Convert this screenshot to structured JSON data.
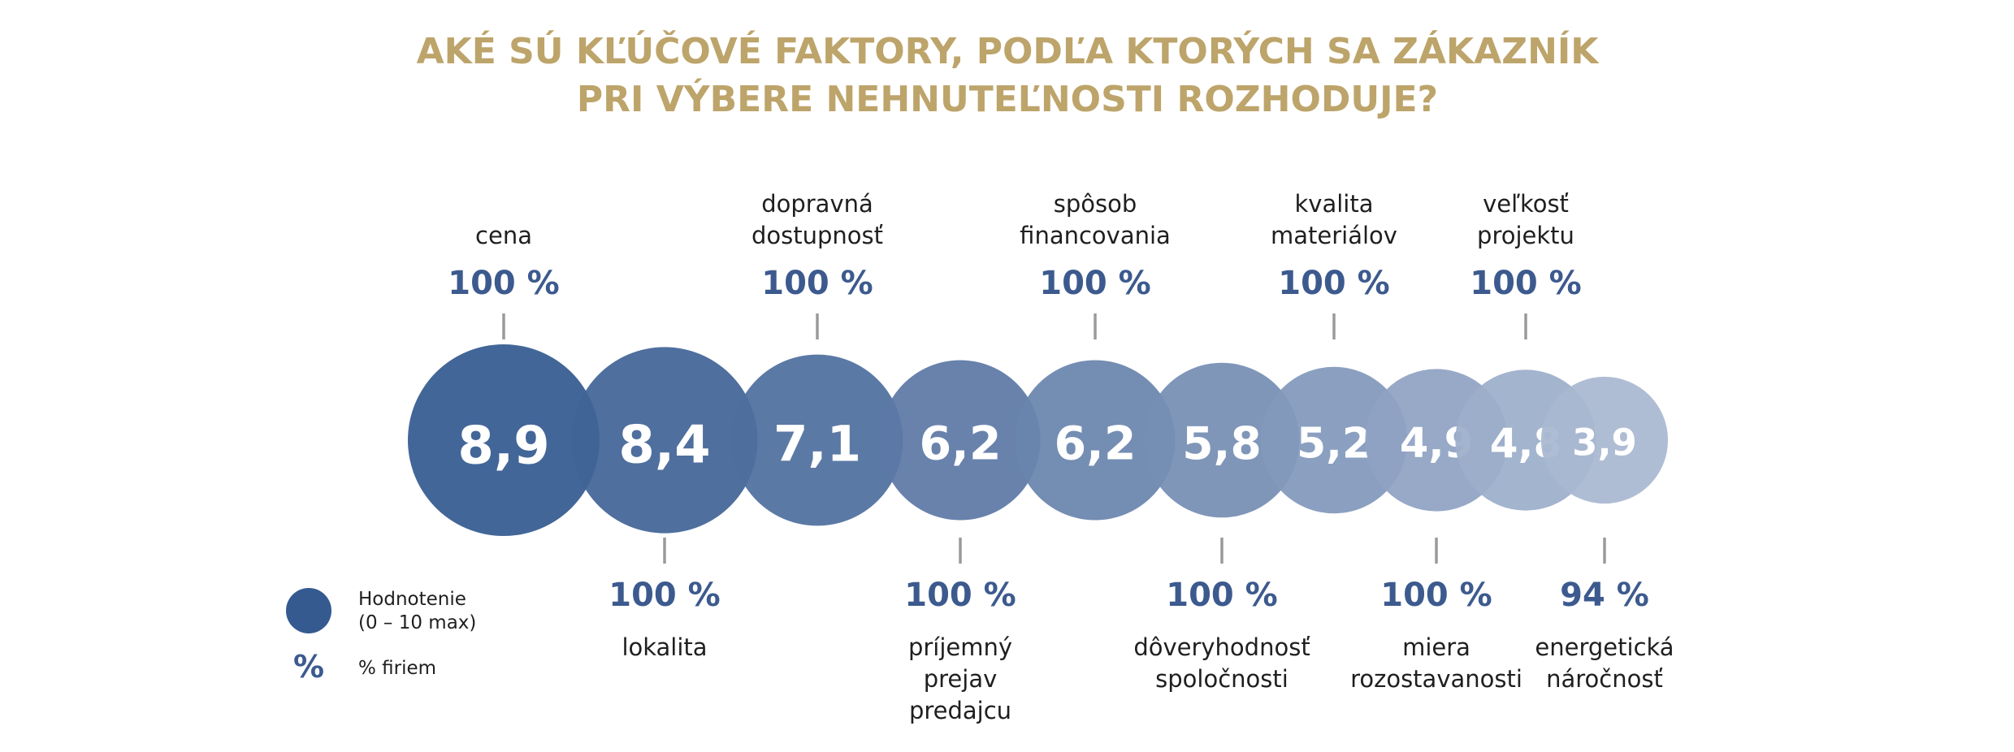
{
  "title": {
    "line1": "AKÉ SÚ KĽÚČOVÉ FAKTORY, PODĽA KTORÝCH SA ZÁKAZNÍK",
    "line2": "PRI VÝBERE NEHNUTEĽNOSTI ROZHODUJE?"
  },
  "colors": {
    "title": "#bda46a",
    "bubble_dark": "#355a90",
    "bubble_light": "#a9b8d1",
    "percent": "#3c5a8e",
    "tick": "#9a9a9a"
  },
  "legend": {
    "rating_label_line1": "Hodnotenie",
    "rating_label_line2": "(0 – 10 max)",
    "percent_symbol": "%",
    "percent_label": "% firiem"
  },
  "chart_data": {
    "type": "bubble",
    "title": "AKÉ SÚ KĽÚČOVÉ FAKTORY, PODĽA KTORÝCH SA ZÁKAZNÍK PRI VÝBERE NEHNUTEĽNOSTI ROZHODUJE?",
    "rating_scale": [
      0,
      10
    ],
    "points": [
      {
        "label": "cena",
        "label_lines": [
          "cena"
        ],
        "value": 8.9,
        "value_label": "8,9",
        "percent": 100,
        "percent_label": "100 %",
        "placement": "top"
      },
      {
        "label": "lokalita",
        "label_lines": [
          "lokalita"
        ],
        "value": 8.4,
        "value_label": "8,4",
        "percent": 100,
        "percent_label": "100 %",
        "placement": "bottom"
      },
      {
        "label": "dopravná dostupnosť",
        "label_lines": [
          "dopravná",
          "dostupnosť"
        ],
        "value": 7.1,
        "value_label": "7,1",
        "percent": 100,
        "percent_label": "100 %",
        "placement": "top"
      },
      {
        "label": "príjemný prejav predajcu",
        "label_lines": [
          "príjemný",
          "prejav",
          "predajcu"
        ],
        "value": 6.2,
        "value_label": "6,2",
        "percent": 100,
        "percent_label": "100 %",
        "placement": "bottom"
      },
      {
        "label": "spôsob financovania",
        "label_lines": [
          "spôsob",
          "financovania"
        ],
        "value": 6.2,
        "value_label": "6,2",
        "percent": 100,
        "percent_label": "100 %",
        "placement": "top"
      },
      {
        "label": "dôveryhodnosť spoločnosti",
        "label_lines": [
          "dôveryhodnosť",
          "spoločnosti"
        ],
        "value": 5.8,
        "value_label": "5,8",
        "percent": 100,
        "percent_label": "100 %",
        "placement": "bottom"
      },
      {
        "label": "kvalita materiálov",
        "label_lines": [
          "kvalita",
          "materiálov"
        ],
        "value": 5.2,
        "value_label": "5,2",
        "percent": 100,
        "percent_label": "100 %",
        "placement": "top"
      },
      {
        "label": "miera rozostavanosti",
        "label_lines": [
          "miera",
          "rozostavanosti"
        ],
        "value": 4.9,
        "value_label": "4,9",
        "percent": 100,
        "percent_label": "100 %",
        "placement": "bottom"
      },
      {
        "label": "veľkosť projektu",
        "label_lines": [
          "veľkosť",
          "projektu"
        ],
        "value": 4.8,
        "value_label": "4,8",
        "percent": 100,
        "percent_label": "100 %",
        "placement": "top"
      },
      {
        "label": "energetická náročnosť",
        "label_lines": [
          "energetická",
          "náročnosť"
        ],
        "value": 3.9,
        "value_label": "3,9",
        "percent": 94,
        "percent_label": "94 %",
        "placement": "bottom"
      }
    ]
  }
}
